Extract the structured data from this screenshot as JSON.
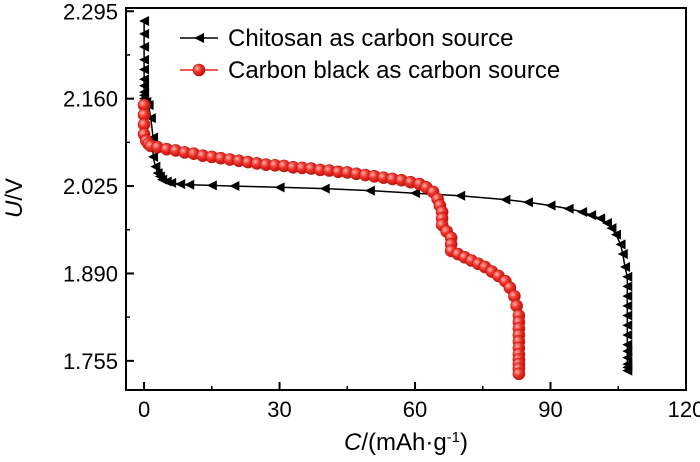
{
  "chart_data": {
    "type": "line",
    "title": "",
    "xlabel": {
      "italic": "C",
      "text": "/(mAh·g",
      "sup": "-1",
      "close": ")"
    },
    "ylabel": {
      "italic": "U",
      "text": "/V"
    },
    "xlim": [
      -4,
      120
    ],
    "ylim": [
      1.71,
      2.3
    ],
    "xticks": [
      0,
      30,
      60,
      90,
      120
    ],
    "xtick_labels": [
      "0",
      "30",
      "60",
      "90",
      "120"
    ],
    "yticks": [
      1.755,
      1.89,
      2.025,
      2.16,
      2.295
    ],
    "ytick_labels": [
      "1.755",
      "1.890",
      "2.025",
      "2.160",
      "2.295"
    ],
    "legend_position": "top",
    "series": [
      {
        "name": "Chitosan as carbon source",
        "color": "#000000",
        "marker": "triangle-left",
        "x": [
          0,
          0,
          0,
          0,
          0,
          0,
          0,
          0,
          0,
          0,
          0.5,
          1,
          1.5,
          2,
          2,
          2,
          2.5,
          3,
          3.5,
          4,
          5,
          6,
          8,
          10,
          15,
          20,
          30,
          40,
          50,
          60,
          70,
          80,
          85,
          90,
          94,
          97,
          99,
          101,
          102.5,
          103.5,
          104.5,
          105.5,
          106,
          106.5,
          107,
          107,
          107,
          107,
          107,
          107,
          107,
          107,
          107,
          107,
          107,
          107,
          107
        ],
        "y": [
          2.28,
          2.26,
          2.24,
          2.22,
          2.205,
          2.19,
          2.18,
          2.17,
          2.165,
          2.16,
          2.155,
          2.15,
          2.13,
          2.1,
          2.085,
          2.07,
          2.055,
          2.045,
          2.04,
          2.035,
          2.032,
          2.03,
          2.028,
          2.027,
          2.026,
          2.025,
          2.023,
          2.021,
          2.018,
          2.014,
          2.01,
          2.004,
          2.0,
          1.995,
          1.99,
          1.985,
          1.98,
          1.975,
          1.968,
          1.96,
          1.95,
          1.935,
          1.92,
          1.9,
          1.885,
          1.87,
          1.855,
          1.84,
          1.825,
          1.81,
          1.795,
          1.78,
          1.77,
          1.76,
          1.75,
          1.745,
          1.74
        ]
      },
      {
        "name": "Carbon black as carbon source",
        "color": "#e8251f",
        "marker": "circle",
        "x": [
          0,
          0,
          0,
          0,
          0.5,
          1,
          1.5,
          3,
          5,
          7,
          9,
          11,
          13,
          15,
          17,
          19,
          21,
          23,
          25,
          27,
          29,
          31,
          33,
          35,
          37,
          39,
          41,
          43,
          45,
          47,
          49,
          51,
          53,
          55,
          57,
          59,
          61,
          62.5,
          64,
          65,
          65.5,
          66,
          66,
          66,
          67,
          68,
          68,
          68,
          69.5,
          71,
          72.5,
          74,
          75.5,
          77,
          78.5,
          80,
          81,
          82,
          82.5,
          83,
          83,
          83,
          83,
          83,
          83,
          83,
          83,
          83,
          83,
          83
        ],
        "y": [
          2.15,
          2.135,
          2.12,
          2.105,
          2.095,
          2.09,
          2.087,
          2.085,
          2.082,
          2.08,
          2.077,
          2.075,
          2.072,
          2.07,
          2.068,
          2.066,
          2.064,
          2.062,
          2.06,
          2.058,
          2.057,
          2.056,
          2.054,
          2.053,
          2.052,
          2.05,
          2.049,
          2.047,
          2.046,
          2.044,
          2.042,
          2.04,
          2.038,
          2.036,
          2.034,
          2.031,
          2.028,
          2.023,
          2.016,
          2.005,
          1.995,
          1.985,
          1.975,
          1.965,
          1.955,
          1.945,
          1.935,
          1.925,
          1.92,
          1.915,
          1.91,
          1.905,
          1.9,
          1.893,
          1.886,
          1.878,
          1.868,
          1.855,
          1.84,
          1.825,
          1.815,
          1.805,
          1.795,
          1.785,
          1.775,
          1.765,
          1.757,
          1.75,
          1.743,
          1.735
        ]
      }
    ]
  }
}
